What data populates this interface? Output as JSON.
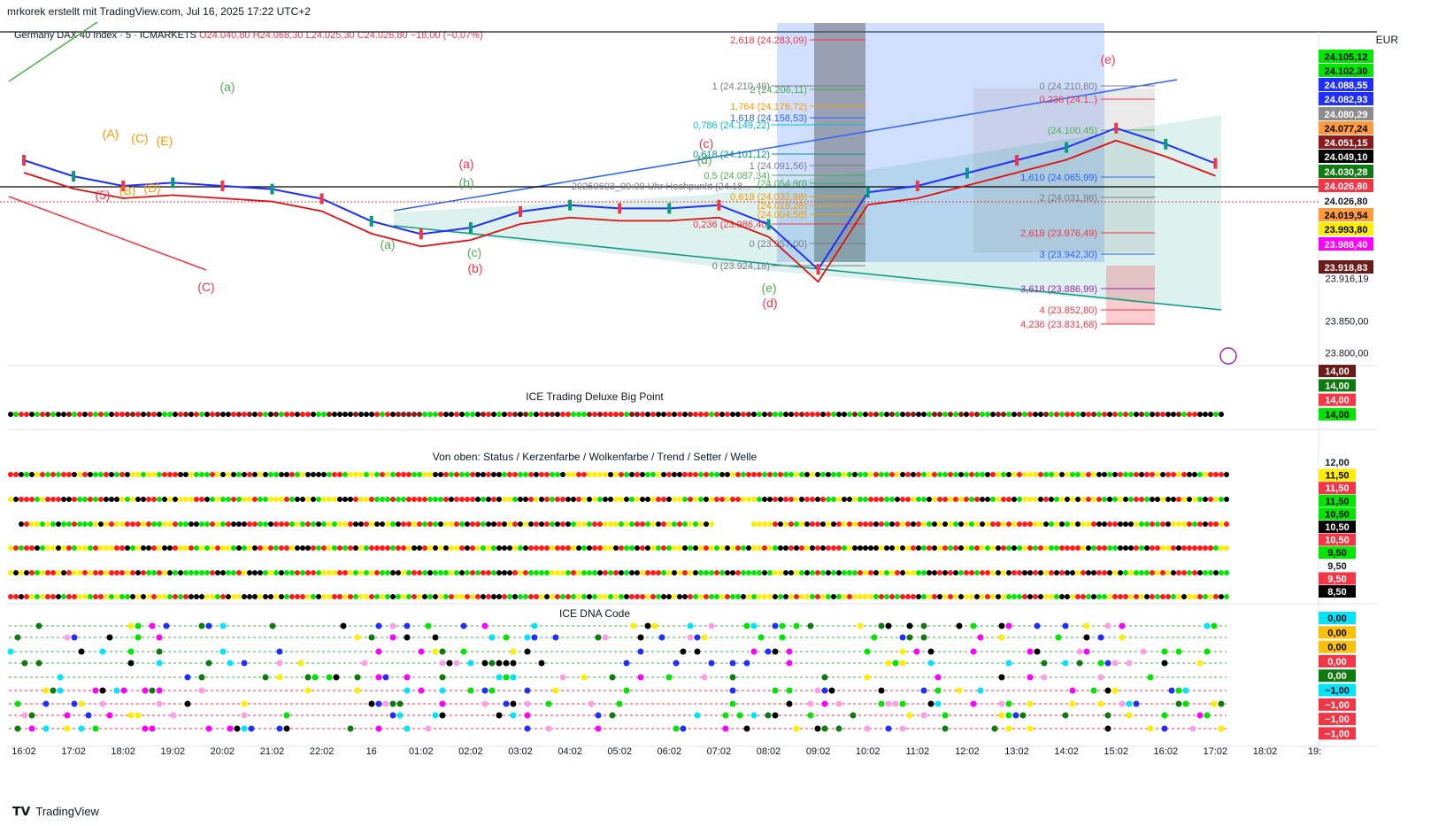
{
  "header": {
    "author_line": "mrkorek erstellt mit TradingView.com, Jul 16, 2025 17:22 UTC+2"
  },
  "legend": {
    "symbol": "Germany DAX 40 Index · 5 · ICMARKETS",
    "open": "O24.040,80",
    "high": "H24.068,30",
    "low": "L24.025,30",
    "close": "C24.026,80",
    "change": "−18,00 (−0,07%)"
  },
  "currency": "EUR",
  "brand": "TradingView",
  "colors": {
    "up": "#089981",
    "down": "#f23645",
    "green_dot": "#00e600",
    "red_dot": "#ff1a1a",
    "yellow_dot": "#ffee00",
    "black_dot": "#000000",
    "blue_line": "#1f3fff",
    "red_line": "#e01010"
  },
  "chart_data": {
    "type": "line",
    "title": "Germany DAX 40 Index · 5 · ICMARKETS",
    "x": [
      "16:02",
      "17:02",
      "18:02",
      "19:02",
      "20:02",
      "21:02",
      "22:02",
      "16",
      "01:02",
      "02:02",
      "03:02",
      "04:02",
      "05:02",
      "06:02",
      "07:02",
      "08:02",
      "09:02",
      "10:02",
      "11:02",
      "12:02",
      "13:02",
      "14:02",
      "15:02",
      "16:02",
      "17:02",
      "18:02",
      "19:"
    ],
    "series": [
      {
        "values": [
          24100,
          24075,
          24060,
          24065,
          24060,
          24055,
          24040,
          24005,
          23985,
          23995,
          24020,
          24030,
          24025,
          24025,
          24030,
          24000,
          23930,
          24050,
          24060,
          24080,
          24100,
          24120,
          24150,
          24125,
          24095,
          null,
          null
        ]
      }
    ],
    "ylim": [
      23780,
      24300
    ],
    "y_ticks": [
      "23.800,00",
      "23.850,00",
      "23.916,19"
    ],
    "price_labels": [
      {
        "text": "24.105,12",
        "bg": "#00e600",
        "fg": "#000000"
      },
      {
        "text": "24.102,30",
        "bg": "#00e600",
        "fg": "#000000"
      },
      {
        "text": "24.088,55",
        "bg": "#1f2fff",
        "fg": "#ffffff"
      },
      {
        "text": "24.082,93",
        "bg": "#1f2fff",
        "fg": "#ffffff"
      },
      {
        "text": "24.080,29",
        "bg": "#8c8c8c",
        "fg": "#ffffff"
      },
      {
        "text": "24.077,24",
        "bg": "#ff9b3d",
        "fg": "#000000"
      },
      {
        "text": "24.051,15",
        "bg": "#8b1a1a",
        "fg": "#ffffff"
      },
      {
        "text": "24.049,10",
        "bg": "#000000",
        "fg": "#ffffff"
      },
      {
        "text": "24.030,28",
        "bg": "#0f7a0f",
        "fg": "#ffffff"
      },
      {
        "text": "24.026,80",
        "bg": "#f23645",
        "fg": "#ffffff"
      },
      {
        "text": "24.026,80",
        "bg": "#ffffff",
        "fg": "#131722"
      },
      {
        "text": "24.019,54",
        "bg": "#ff9b3d",
        "fg": "#000000"
      },
      {
        "text": "23.993,80",
        "bg": "#ffee00",
        "fg": "#000000"
      },
      {
        "text": "23.988,40",
        "bg": "#ff00ff",
        "fg": "#ffffff"
      },
      {
        "text": "23.918,83",
        "bg": "#6b1a1a",
        "fg": "#ffffff"
      }
    ],
    "fib_levels": [
      {
        "text": "2,618 (24.283,09)",
        "color": "#f23645"
      },
      {
        "text": "1 (24.210,49)",
        "color": "#787b86"
      },
      {
        "text": "2 (24.206,11)",
        "color": "#4caf50"
      },
      {
        "text": "1,764 (24.176,72)",
        "color": "#ff9800"
      },
      {
        "text": "1,618 (24.158,53)",
        "color": "#2962ff"
      },
      {
        "text": "0,786 (24.149,22)",
        "color": "#00bcd4"
      },
      {
        "text": "0,618 (24.101,12)",
        "color": "#009688"
      },
      {
        "text": "1 (24.091,56)",
        "color": "#787b86"
      },
      {
        "text": "0,5 (24.087,34)",
        "color": "#4caf50"
      },
      {
        "text": "(24.054,90)",
        "color": "#4caf50"
      },
      {
        "text": "0,618 (24.032,98)",
        "color": "#ff9800"
      },
      {
        "text": "(24.019,28)",
        "color": "#ff9800"
      },
      {
        "text": "(24.004,58)",
        "color": "#ff9800"
      },
      {
        "text": "0,236 (23.986,40)",
        "color": "#f23645"
      },
      {
        "text": "0 (23.957,00)",
        "color": "#787b86"
      },
      {
        "text": "0 (23.924,18)",
        "color": "#787b86"
      },
      {
        "text": "0 (24.210,80)",
        "color": "#787b86"
      },
      {
        "text": "0,236 (24.1..)",
        "color": "#f23645"
      },
      {
        "text": "(24.100,45)",
        "color": "#4caf50"
      },
      {
        "text": "1,610 (24.065,99)",
        "color": "#2962ff"
      },
      {
        "text": "2 (24.031,98)",
        "color": "#787b86"
      },
      {
        "text": "2,618 (23.976,49)",
        "color": "#f23645"
      },
      {
        "text": "3 (23.942,30)",
        "color": "#2962ff"
      },
      {
        "text": "3,618 (23.886,99)",
        "color": "#9c27b0"
      },
      {
        "text": "4 (23.852,80)",
        "color": "#f23645"
      },
      {
        "text": "4,236 (23.831,68)",
        "color": "#f23645"
      }
    ],
    "annotation": "20250603_09:00 Uhr Hochpunkt (24.18...",
    "wave_labels": [
      {
        "text": "(a)",
        "color": "#4caf50"
      },
      {
        "text": "(C)",
        "color": "#f23645"
      },
      {
        "text": "(A)",
        "color": "#ff9800"
      },
      {
        "text": "(C)",
        "color": "#ff9800"
      },
      {
        "text": "(E)",
        "color": "#ff9800"
      },
      {
        "text": "(B)",
        "color": "#ff9800"
      },
      {
        "text": "(D)",
        "color": "#ff9800"
      },
      {
        "text": "(5)",
        "color": "#f23645"
      },
      {
        "text": "(a)",
        "color": "#4caf50"
      },
      {
        "text": "(a)",
        "color": "#f23645"
      },
      {
        "text": "(b)",
        "color": "#4caf50"
      },
      {
        "text": "(c)",
        "color": "#4caf50"
      },
      {
        "text": "(b)",
        "color": "#f23645"
      },
      {
        "text": "(c)",
        "color": "#f23645"
      },
      {
        "text": "(d)",
        "color": "#4caf50"
      },
      {
        "text": "(e)",
        "color": "#4caf50"
      },
      {
        "text": "(d)",
        "color": "#f23645"
      },
      {
        "text": "(e)",
        "color": "#f23645"
      }
    ],
    "indicators": [
      {
        "title": "ICE Trading Deluxe Big Point",
        "labels": [
          {
            "text": "14,00",
            "bg": "#6b1a1a",
            "fg": "#ffffff"
          },
          {
            "text": "14,00",
            "bg": "#0f7a0f",
            "fg": "#ffffff"
          },
          {
            "text": "14,00",
            "bg": "#f23645",
            "fg": "#ffffff"
          },
          {
            "text": "14,00",
            "bg": "#00e600",
            "fg": "#000000"
          }
        ]
      },
      {
        "title": "Von oben: Status / Kerzenfarbe / Wolkenfarbe / Trend / Setter / Welle",
        "labels": [
          {
            "text": "12,00",
            "bg": "#ffffff",
            "fg": "#131722"
          },
          {
            "text": "11,50",
            "bg": "#ffee00",
            "fg": "#000000"
          },
          {
            "text": "11,50",
            "bg": "#f23645",
            "fg": "#ffffff"
          },
          {
            "text": "11,50",
            "bg": "#00e600",
            "fg": "#000000"
          },
          {
            "text": "10,50",
            "bg": "#00e600",
            "fg": "#000000"
          },
          {
            "text": "10,50",
            "bg": "#000000",
            "fg": "#ffffff"
          },
          {
            "text": "10,50",
            "bg": "#f23645",
            "fg": "#ffffff"
          },
          {
            "text": "9,50",
            "bg": "#00e600",
            "fg": "#000000"
          },
          {
            "text": "9,50",
            "bg": "#ffffff",
            "fg": "#131722"
          },
          {
            "text": "9,50",
            "bg": "#f23645",
            "fg": "#ffffff"
          },
          {
            "text": "8,50",
            "bg": "#000000",
            "fg": "#ffffff"
          }
        ]
      },
      {
        "title": "ICE DNA Code",
        "labels": [
          {
            "text": "0,00",
            "bg": "#00e5ff",
            "fg": "#000000"
          },
          {
            "text": "0,00",
            "bg": "#ffc107",
            "fg": "#000000"
          },
          {
            "text": "0,00",
            "bg": "#ffc107",
            "fg": "#000000"
          },
          {
            "text": "0,00",
            "bg": "#f23645",
            "fg": "#ffffff"
          },
          {
            "text": "0,00",
            "bg": "#0f7a0f",
            "fg": "#ffffff"
          },
          {
            "text": "−1,00",
            "bg": "#00e5ff",
            "fg": "#000000"
          },
          {
            "text": "−1,00",
            "bg": "#f23645",
            "fg": "#ffffff"
          },
          {
            "text": "−1,00",
            "bg": "#f23645",
            "fg": "#ffffff"
          },
          {
            "text": "−1,00",
            "bg": "#f23645",
            "fg": "#ffffff"
          }
        ]
      }
    ]
  }
}
